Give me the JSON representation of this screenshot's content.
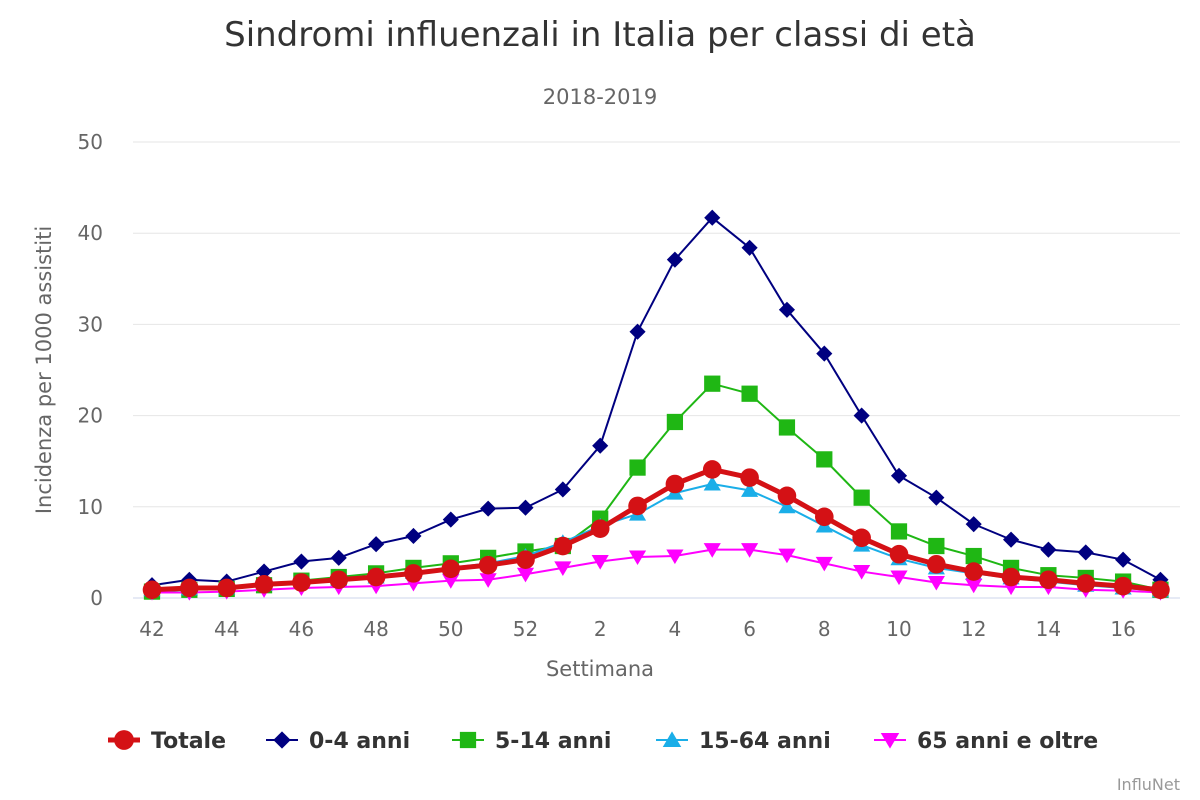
{
  "chart_data": {
    "type": "line",
    "title": "Sindromi influenzali in Italia per classi di età",
    "subtitle": "2018-2019",
    "xlabel": "Settimana",
    "ylabel": "Incidenza per 1000 assistiti",
    "ylim": [
      0,
      50
    ],
    "yticks": [
      "0",
      "10",
      "20",
      "30",
      "40",
      "50"
    ],
    "grid": true,
    "legend_position": "bottom",
    "categories": [
      "42",
      "43",
      "44",
      "45",
      "46",
      "47",
      "48",
      "49",
      "50",
      "51",
      "52",
      "1",
      "2",
      "3",
      "4",
      "5",
      "6",
      "7",
      "8",
      "9",
      "10",
      "11",
      "12",
      "13",
      "14",
      "15",
      "16",
      "17"
    ],
    "xtick_labels": [
      "42",
      "44",
      "46",
      "48",
      "50",
      "52",
      "2",
      "4",
      "6",
      "8",
      "10",
      "12",
      "14",
      "16"
    ],
    "series": [
      {
        "name": "0-4 anni",
        "color": "#000080",
        "marker": "diamond",
        "values": [
          1.4,
          2.0,
          1.8,
          2.9,
          4.0,
          4.4,
          5.9,
          6.8,
          8.6,
          9.8,
          9.9,
          11.9,
          16.7,
          29.2,
          37.1,
          41.7,
          38.4,
          31.6,
          26.8,
          20.0,
          13.4,
          11.0,
          8.1,
          6.4,
          5.3,
          5.0,
          4.2,
          2.0
        ]
      },
      {
        "name": "5-14 anni",
        "color": "#1fb714",
        "marker": "square",
        "values": [
          0.7,
          0.9,
          1.0,
          1.4,
          1.9,
          2.3,
          2.7,
          3.3,
          3.8,
          4.4,
          5.1,
          5.7,
          8.7,
          14.3,
          19.3,
          23.5,
          22.4,
          18.7,
          15.2,
          11.0,
          7.3,
          5.7,
          4.6,
          3.3,
          2.5,
          2.2,
          1.8,
          0.9
        ]
      },
      {
        "name": "15-64 anni",
        "color": "#1aaee8",
        "marker": "triangle",
        "values": [
          0.9,
          1.0,
          1.1,
          1.5,
          1.8,
          2.0,
          2.3,
          2.8,
          3.3,
          3.8,
          4.6,
          6.1,
          7.9,
          9.2,
          11.5,
          12.5,
          11.8,
          10.0,
          7.9,
          5.8,
          4.3,
          3.3,
          2.7,
          2.2,
          1.8,
          1.4,
          1.1,
          0.8
        ]
      },
      {
        "name": "65 anni e oltre",
        "color": "#ff00ff",
        "marker": "triangle-down",
        "values": [
          0.6,
          0.6,
          0.7,
          0.9,
          1.1,
          1.2,
          1.3,
          1.6,
          1.9,
          2.0,
          2.6,
          3.3,
          4.0,
          4.5,
          4.6,
          5.3,
          5.3,
          4.7,
          3.8,
          2.9,
          2.3,
          1.7,
          1.4,
          1.2,
          1.2,
          0.9,
          0.8,
          0.6
        ]
      },
      {
        "name": "Totale",
        "color": "#d41115",
        "marker": "circle",
        "thick": true,
        "values": [
          0.9,
          1.1,
          1.1,
          1.5,
          1.7,
          2.0,
          2.3,
          2.7,
          3.2,
          3.6,
          4.2,
          5.7,
          7.6,
          10.1,
          12.5,
          14.1,
          13.2,
          11.2,
          8.9,
          6.6,
          4.8,
          3.7,
          2.9,
          2.3,
          2.0,
          1.6,
          1.3,
          0.9
        ]
      }
    ],
    "legend_order": [
      "Totale",
      "0-4 anni",
      "5-14 anni",
      "15-64 anni",
      "65 anni e oltre"
    ]
  },
  "credits": "InfluNet"
}
